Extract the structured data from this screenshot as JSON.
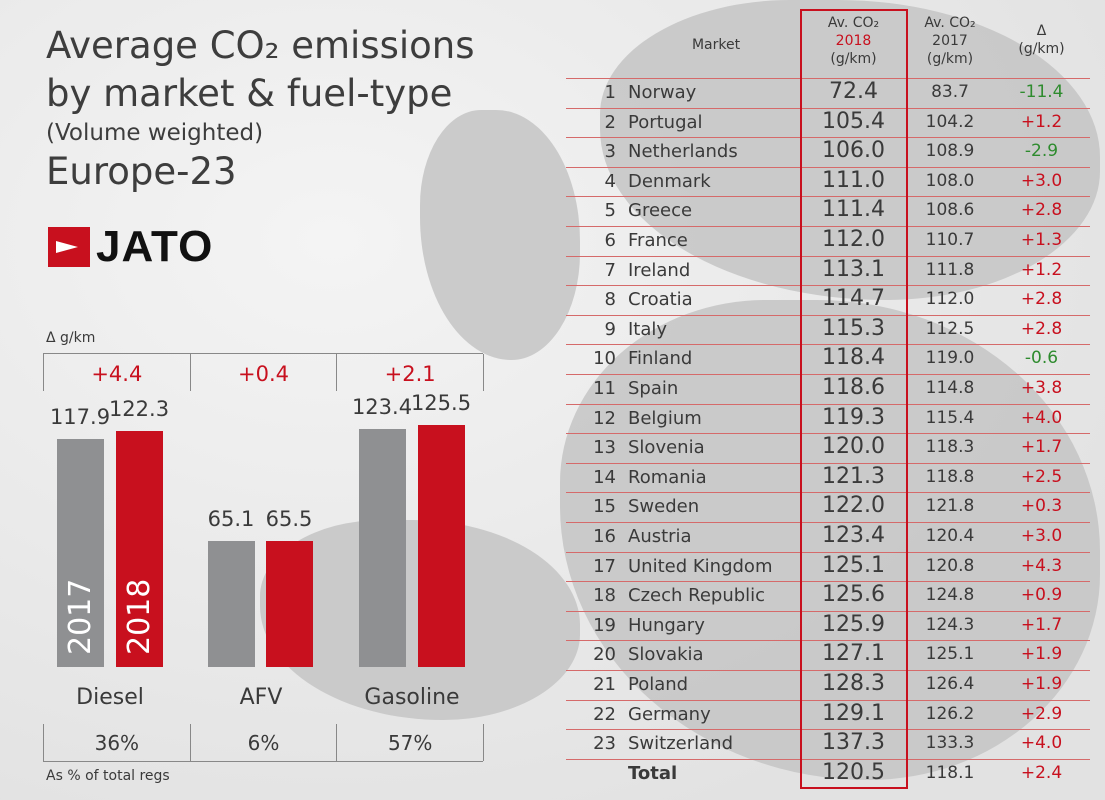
{
  "title": {
    "line1": "Average CO₂ emissions",
    "line2": "by market & fuel-type",
    "subtitle": "(Volume weighted)",
    "region": "Europe-23"
  },
  "logo": "JATO",
  "colors": {
    "y2017": "#8f9092",
    "y2018": "#c8101e",
    "positive": "#c8101e",
    "negative": "#2e8b2e"
  },
  "chart_data": {
    "type": "bar",
    "categories": [
      "Diesel",
      "AFV",
      "Gasoline"
    ],
    "series": [
      {
        "name": "2017",
        "values": [
          117.9,
          65.1,
          123.4
        ]
      },
      {
        "name": "2018",
        "values": [
          122.3,
          65.5,
          125.5
        ]
      }
    ],
    "delta_label": "Δ g/km",
    "deltas": [
      "+4.4",
      "+0.4",
      "+2.1"
    ],
    "share_label": "As % of total regs",
    "shares": [
      "36%",
      "6%",
      "57%"
    ],
    "ylim": [
      0,
      130
    ]
  },
  "table": {
    "headers": {
      "market": "Market",
      "y2018_a": "Av. CO₂",
      "y2018_b": "2018",
      "y2018_c": "(g/km)",
      "y2017_a": "Av. CO₂",
      "y2017_b": "2017",
      "y2017_c": "(g/km)",
      "delta_a": "Δ",
      "delta_b": "(g/km)"
    },
    "rows": [
      [
        "1",
        "Norway",
        "72.4",
        "83.7",
        "-11.4"
      ],
      [
        "2",
        "Portugal",
        "105.4",
        "104.2",
        "+1.2"
      ],
      [
        "3",
        "Netherlands",
        "106.0",
        "108.9",
        "-2.9"
      ],
      [
        "4",
        "Denmark",
        "111.0",
        "108.0",
        "+3.0"
      ],
      [
        "5",
        "Greece",
        "111.4",
        "108.6",
        "+2.8"
      ],
      [
        "6",
        "France",
        "112.0",
        "110.7",
        "+1.3"
      ],
      [
        "7",
        "Ireland",
        "113.1",
        "111.8",
        "+1.2"
      ],
      [
        "8",
        "Croatia",
        "114.7",
        "112.0",
        "+2.8"
      ],
      [
        "9",
        "Italy",
        "115.3",
        "112.5",
        "+2.8"
      ],
      [
        "10",
        "Finland",
        "118.4",
        "119.0",
        "-0.6"
      ],
      [
        "11",
        "Spain",
        "118.6",
        "114.8",
        "+3.8"
      ],
      [
        "12",
        "Belgium",
        "119.3",
        "115.4",
        "+4.0"
      ],
      [
        "13",
        "Slovenia",
        "120.0",
        "118.3",
        "+1.7"
      ],
      [
        "14",
        "Romania",
        "121.3",
        "118.8",
        "+2.5"
      ],
      [
        "15",
        "Sweden",
        "122.0",
        "121.8",
        "+0.3"
      ],
      [
        "16",
        "Austria",
        "123.4",
        "120.4",
        "+3.0"
      ],
      [
        "17",
        "United Kingdom",
        "125.1",
        "120.8",
        "+4.3"
      ],
      [
        "18",
        "Czech Republic",
        "125.6",
        "124.8",
        "+0.9"
      ],
      [
        "19",
        "Hungary",
        "125.9",
        "124.3",
        "+1.7"
      ],
      [
        "20",
        "Slovakia",
        "127.1",
        "125.1",
        "+1.9"
      ],
      [
        "21",
        "Poland",
        "128.3",
        "126.4",
        "+1.9"
      ],
      [
        "22",
        "Germany",
        "129.1",
        "126.2",
        "+2.9"
      ],
      [
        "23",
        "Switzerland",
        "137.3",
        "133.3",
        "+4.0"
      ],
      [
        "",
        "Total",
        "120.5",
        "118.1",
        "+2.4"
      ]
    ]
  }
}
